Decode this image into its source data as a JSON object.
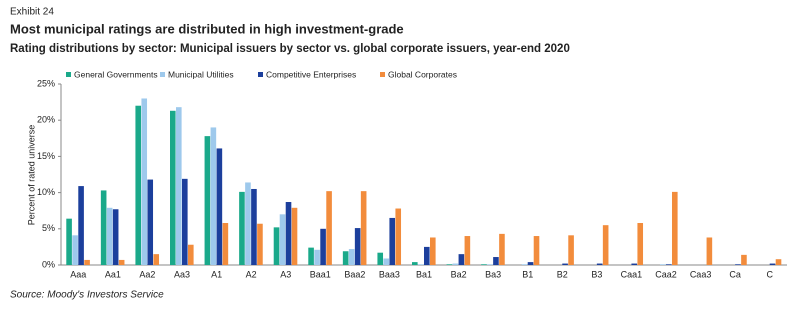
{
  "header": {
    "exhibit": "Exhibit 24",
    "title": "Most municipal ratings are distributed in high investment-grade",
    "subtitle": "Rating distributions by sector: Municipal issuers by sector vs. global corporate issuers, year-end 2020"
  },
  "chart_data": {
    "type": "bar",
    "y_label": "Percent of rated universe",
    "categories": [
      "Aaa",
      "Aa1",
      "Aa2",
      "Aa3",
      "A1",
      "A2",
      "A3",
      "Baa1",
      "Baa2",
      "Baa3",
      "Ba1",
      "Ba2",
      "Ba3",
      "B1",
      "B2",
      "B3",
      "Caa1",
      "Caa2",
      "Caa3",
      "Ca",
      "C"
    ],
    "series": [
      {
        "name": "General Governments",
        "color": "#1aa98a",
        "values": [
          6.4,
          10.3,
          22,
          21.3,
          17.8,
          10.1,
          5.2,
          2.4,
          1.9,
          1.7,
          0.4,
          0.1,
          0.1,
          0,
          0,
          0,
          0,
          0,
          0,
          0,
          0
        ]
      },
      {
        "name": "Municipal Utilities",
        "color": "#9ec9ec",
        "values": [
          4.1,
          7.9,
          23,
          21.8,
          19,
          11.4,
          7,
          2.1,
          2.2,
          0.9,
          0.1,
          0.2,
          0.1,
          0.1,
          0,
          0,
          0,
          0.1,
          0,
          0,
          0
        ]
      },
      {
        "name": "Competitive Enterprises",
        "color": "#1c3f9c",
        "values": [
          10.9,
          7.7,
          11.8,
          11.9,
          16.1,
          10.5,
          8.7,
          5,
          5.1,
          6.5,
          2.5,
          1.5,
          1.1,
          0.4,
          0.2,
          0.2,
          0.2,
          0.1,
          0,
          0.1,
          0.2
        ]
      },
      {
        "name": "Global Corporates",
        "color": "#f28c3c",
        "values": [
          0.7,
          0.7,
          1.5,
          2.8,
          5.8,
          5.7,
          7.9,
          10.2,
          10.2,
          7.8,
          3.8,
          4,
          4.3,
          4,
          4.1,
          5.5,
          5.8,
          10.1,
          3.8,
          1.4,
          0.8
        ]
      }
    ],
    "ylim": [
      0,
      25
    ],
    "yticks": [
      {
        "value": 0,
        "label": "0%"
      },
      {
        "value": 5,
        "label": "5%"
      },
      {
        "value": 10,
        "label": "10%"
      },
      {
        "value": 15,
        "label": "15%"
      },
      {
        "value": 20,
        "label": "20%"
      },
      {
        "value": 25,
        "label": "25%"
      }
    ],
    "grid": false,
    "legend": "top"
  },
  "footer": {
    "source": "Source: Moody's Investors Service"
  }
}
